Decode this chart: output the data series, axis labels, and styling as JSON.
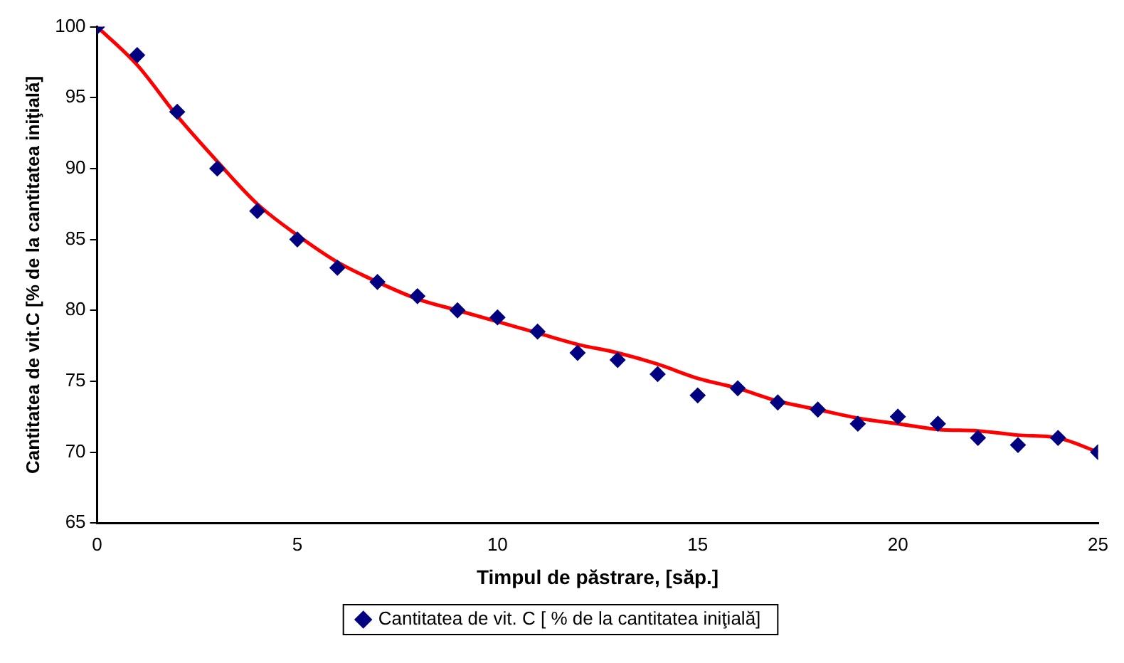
{
  "chart_data": {
    "type": "scatter",
    "xlabel": "Timpul de păstrare, [săp.]",
    "ylabel": "Cantitatea de vit.C [% de la cantitatea iniţială]",
    "x": [
      0,
      1,
      2,
      3,
      4,
      5,
      6,
      7,
      8,
      9,
      10,
      11,
      12,
      13,
      14,
      15,
      16,
      17,
      18,
      19,
      20,
      21,
      22,
      23,
      24,
      25
    ],
    "series": [
      {
        "name": "Cantitatea de vit. C [ % de la cantitatea iniţială]",
        "color": "#000080",
        "marker": "diamond",
        "values": [
          100,
          98,
          94,
          90,
          87,
          85,
          83,
          82,
          81,
          80,
          79.5,
          78.5,
          77,
          76.5,
          75.5,
          74,
          74.5,
          73.5,
          73,
          72,
          72.5,
          72,
          71,
          70.5,
          71,
          70
        ]
      },
      {
        "type": "line",
        "color": "#ff0000",
        "marker": "none",
        "line_style": "solid",
        "x": [
          0,
          1,
          2,
          3,
          4,
          5,
          6,
          7,
          8,
          9,
          10,
          11,
          12,
          13,
          14,
          15,
          16,
          17,
          18,
          19,
          20,
          21,
          22,
          23,
          24,
          25
        ],
        "values": [
          100,
          97.3,
          93.7,
          90.5,
          87.5,
          85.3,
          83.4,
          82,
          80.8,
          80,
          79.2,
          78.4,
          77.6,
          77,
          76.2,
          75.2,
          74.5,
          73.6,
          73,
          72.4,
          72,
          71.6,
          71.5,
          71.2,
          71,
          70
        ]
      }
    ],
    "xlim": [
      0,
      25
    ],
    "xticks": [
      0,
      5,
      10,
      15,
      20,
      25
    ],
    "ylim": [
      65,
      100
    ],
    "yticks": [
      65,
      70,
      75,
      80,
      85,
      90,
      95,
      100
    ],
    "grid": false,
    "legend": "bottom"
  }
}
